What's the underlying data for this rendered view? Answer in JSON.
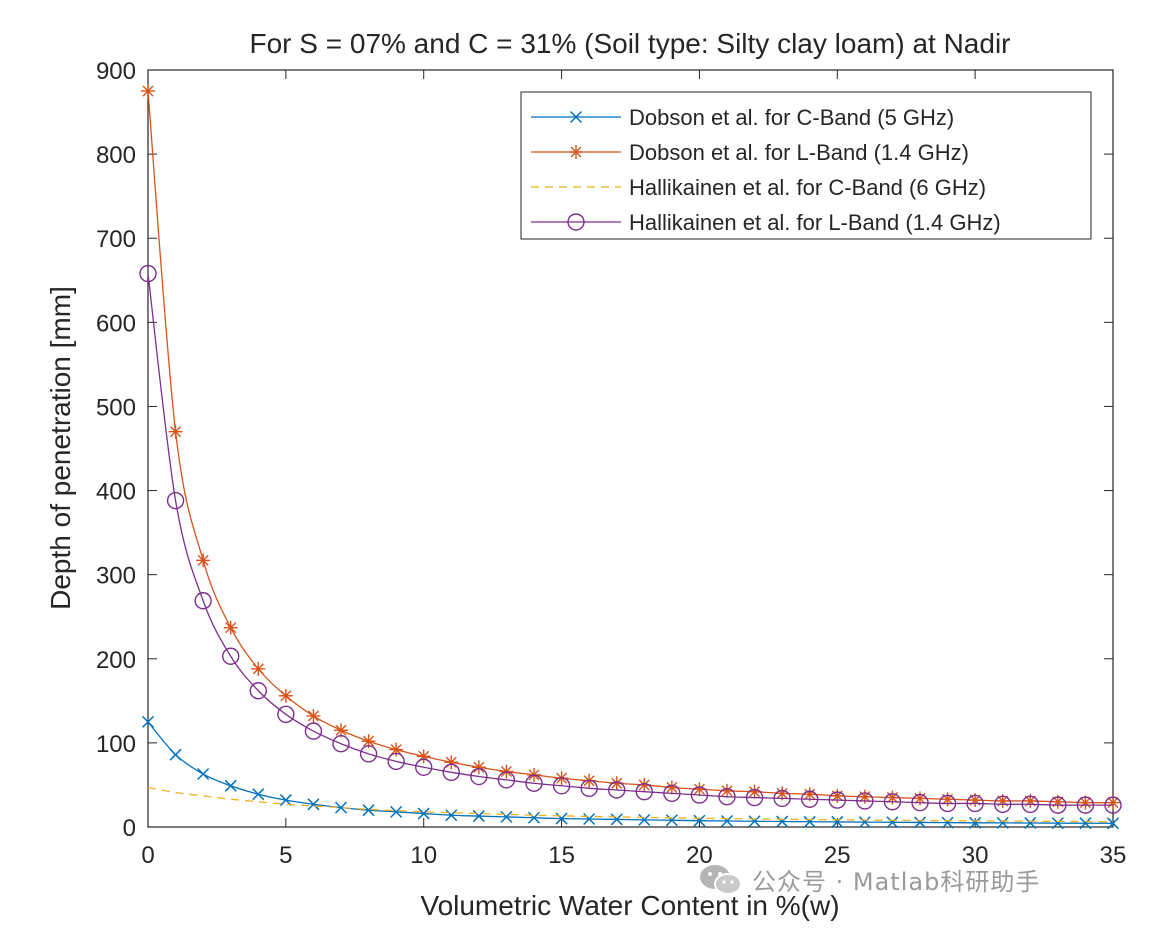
{
  "chart_data": {
    "type": "line",
    "title": "For S = 07% and C = 31% (Soil type: Silty clay loam) at Nadir",
    "xlabel": "Volumetric Water Content in %(w)",
    "ylabel": "Depth of penetration [mm]",
    "xlim": [
      0,
      35
    ],
    "ylim": [
      0,
      900
    ],
    "xticks": [
      0,
      5,
      10,
      15,
      20,
      25,
      30,
      35
    ],
    "yticks": [
      0,
      100,
      200,
      300,
      400,
      500,
      600,
      700,
      800,
      900
    ],
    "legend_position": "top-right",
    "x": [
      0,
      1,
      2,
      3,
      4,
      5,
      6,
      7,
      8,
      9,
      10,
      11,
      12,
      13,
      14,
      15,
      16,
      17,
      18,
      19,
      20,
      21,
      22,
      23,
      24,
      25,
      26,
      27,
      28,
      29,
      30,
      31,
      32,
      33,
      34,
      35
    ],
    "series": [
      {
        "name": "Dobson et al. for C-Band (5 GHz)",
        "color": "#0072BD",
        "marker": "x",
        "line": "solid",
        "values": [
          125,
          86,
          63,
          49,
          39,
          32,
          27,
          23,
          20,
          18,
          16,
          14,
          13,
          12,
          11,
          10,
          9.5,
          9,
          8.5,
          8,
          7.5,
          7.1,
          6.8,
          6.5,
          6.2,
          6,
          5.8,
          5.6,
          5.4,
          5.2,
          5,
          4.9,
          4.8,
          4.6,
          4.5,
          4.4
        ]
      },
      {
        "name": "Dobson et al. for L-Band (1.4 GHz)",
        "color": "#D95319",
        "marker": "*",
        "line": "solid",
        "values": [
          875,
          470,
          317,
          237,
          188,
          156,
          132,
          115,
          102,
          92,
          84,
          77,
          71,
          66,
          62,
          58,
          55,
          52,
          50,
          47,
          45,
          43,
          42,
          40,
          39,
          37,
          36,
          35,
          34,
          33,
          32,
          31,
          31,
          30,
          29,
          29
        ]
      },
      {
        "name": "Hallikainen et al. for C-Band (6 GHz)",
        "color": "#EDB120",
        "marker": "none",
        "line": "dashed",
        "values": [
          47,
          41,
          37,
          33,
          30,
          27,
          25,
          23,
          21,
          19.5,
          18,
          17,
          16,
          15,
          14,
          13.3,
          12.6,
          12,
          11.4,
          10.9,
          10.4,
          10,
          9.6,
          9.2,
          8.9,
          8.6,
          8.3,
          8,
          7.8,
          7.5,
          7.3,
          7.1,
          6.9,
          6.7,
          6.5,
          6.3
        ]
      },
      {
        "name": "Hallikainen et al. for L-Band (1.4 GHz)",
        "color": "#7E2F8E",
        "marker": "o",
        "line": "solid",
        "values": [
          658,
          388,
          269,
          203,
          162,
          134,
          114,
          99,
          87,
          78,
          71,
          65,
          60,
          56,
          52,
          49,
          46,
          44,
          42,
          40,
          38,
          36,
          35,
          34,
          33,
          32,
          31,
          30,
          29,
          28,
          28,
          27,
          27,
          26,
          26,
          26
        ]
      }
    ]
  },
  "watermark": {
    "icon": "wechat-icon",
    "text": "公众号 · Matlab科研助手"
  }
}
